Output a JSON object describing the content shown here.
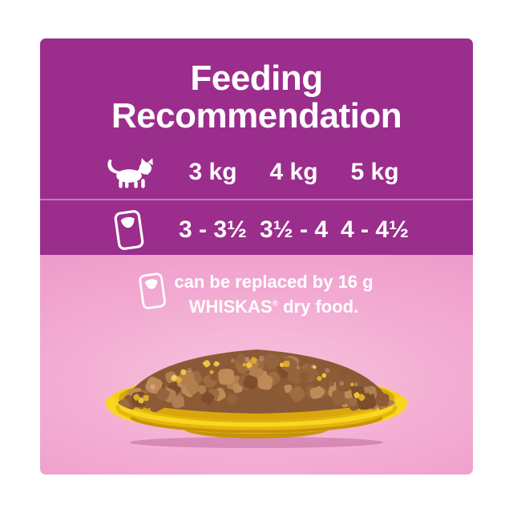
{
  "colors": {
    "purple": "#9B2D8C",
    "pink": "#F0A5CE",
    "plate_yellow": "#F7D319",
    "text": "#FFFFFF"
  },
  "title": {
    "line1": "Feeding",
    "line2": "Recommendation"
  },
  "feeding_table": {
    "weight_headers": [
      "3 kg",
      "4 kg",
      "5 kg"
    ],
    "pouch_portions": [
      "3 - 3½",
      "3½ - 4",
      "4 - 4½"
    ]
  },
  "replacement_note": {
    "line1": "can be replaced by 16 g",
    "brand": "WHISKAS",
    "registered_mark": "®",
    "line2_rest": "dry food."
  },
  "photo": {
    "label": "chunky cat food in gravy on a yellow plate"
  }
}
